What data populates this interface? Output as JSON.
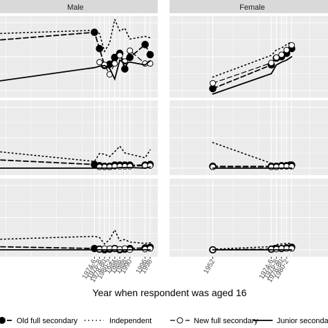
{
  "chart_data": {
    "type": "line",
    "xlabel": "Year when respondent was aged 16",
    "ylabel": "",
    "facet_titles": [
      "Male",
      "Female"
    ],
    "rows": 3,
    "x_tick_labels": {
      "Male": [
        "1974-6",
        "1976-8",
        "1978-80",
        "1980-2",
        "1984",
        "1986",
        "1988",
        "1990",
        "1996",
        "1998"
      ],
      "Female": [
        "1952",
        "1974-6",
        "1976-8",
        "1978-80",
        "1980-2"
      ]
    },
    "x_domain": [
      1935,
      2000
    ],
    "y_domain": [
      0,
      1
    ],
    "series": [
      {
        "name": "Old full secondary",
        "marker": "filled-circle",
        "line": "dashed"
      },
      {
        "name": "Independent",
        "marker": "none",
        "line": "dotted"
      },
      {
        "name": "New full secondary",
        "marker": "open-circle",
        "line": "dashed"
      },
      {
        "name": "Junior secondary",
        "marker": "none",
        "line": "solid"
      }
    ],
    "panels": [
      {
        "row": 0,
        "facet": "Male",
        "lines": {
          "Old full secondary": [
            [
              1935,
              0.74
            ],
            [
              1975,
              0.86
            ],
            [
              1977,
              0.62
            ],
            [
              1979,
              0.37
            ],
            [
              1981,
              0.39
            ],
            [
              1983,
              0.49
            ],
            [
              1985,
              0.55
            ],
            [
              1987,
              0.32
            ],
            [
              1989,
              0.49
            ],
            [
              1995,
              0.68
            ],
            [
              1997,
              0.53
            ]
          ],
          "Independent": [
            [
              1935,
              0.84
            ],
            [
              1975,
              0.89
            ],
            [
              1977,
              0.84
            ],
            [
              1979,
              0.58
            ],
            [
              1981,
              0.7
            ],
            [
              1983,
              1.05
            ],
            [
              1985,
              0.88
            ],
            [
              1987,
              0.92
            ],
            [
              1989,
              0.76
            ],
            [
              1995,
              0.8
            ],
            [
              1997,
              0.78
            ]
          ],
          "New full secondary": [
            [
              1977,
              0.42
            ],
            [
              1979,
              0.38
            ],
            [
              1981,
              0.24
            ],
            [
              1983,
              0.4
            ],
            [
              1985,
              0.52
            ],
            [
              1987,
              0.43
            ],
            [
              1989,
              0.59
            ],
            [
              1995,
              0.4
            ],
            [
              1997,
              0.4
            ]
          ],
          "Junior secondary": [
            [
              1935,
              0.13
            ],
            [
              1975,
              0.34
            ],
            [
              1977,
              0.36
            ],
            [
              1979,
              0.37
            ],
            [
              1981,
              0.33
            ],
            [
              1983,
              0.17
            ],
            [
              1985,
              0.45
            ],
            [
              1987,
              0.4
            ],
            [
              1989,
              0.42
            ],
            [
              1995,
              0.38
            ],
            [
              1997,
              0.44
            ]
          ]
        }
      },
      {
        "row": 0,
        "facet": "Female",
        "lines": {
          "Old full secondary": [
            [
              1952,
              0.03
            ],
            [
              1975,
              0.38
            ],
            [
              1977,
              0.48
            ],
            [
              1979,
              0.5
            ],
            [
              1981,
              0.55
            ],
            [
              1983,
              0.62
            ]
          ],
          "Independent": [
            [
              1952,
              0.2
            ],
            [
              1975,
              0.52
            ],
            [
              1977,
              0.6
            ],
            [
              1979,
              0.63
            ],
            [
              1981,
              0.68
            ],
            [
              1983,
              0.72
            ]
          ],
          "New full secondary": [
            [
              1952,
              0.11
            ],
            [
              1975,
              0.41
            ],
            [
              1977,
              0.49
            ],
            [
              1979,
              0.53
            ],
            [
              1981,
              0.6
            ],
            [
              1983,
              0.67
            ]
          ],
          "Junior secondary": [
            [
              1952,
              -0.05
            ],
            [
              1975,
              0.25
            ],
            [
              1977,
              0.38
            ],
            [
              1979,
              0.42
            ],
            [
              1981,
              0.45
            ],
            [
              1983,
              0.5
            ]
          ]
        }
      },
      {
        "row": 1,
        "facet": "Male",
        "lines": {
          "Old full secondary": [
            [
              1935,
              0.14
            ],
            [
              1975,
              0.06
            ],
            [
              1977,
              0.04
            ],
            [
              1979,
              0.03
            ],
            [
              1981,
              0.03
            ],
            [
              1983,
              0.05
            ],
            [
              1985,
              0.05
            ],
            [
              1987,
              0.05
            ],
            [
              1989,
              0.05
            ],
            [
              1995,
              0.05
            ],
            [
              1997,
              0.06
            ]
          ],
          "Independent": [
            [
              1935,
              0.28
            ],
            [
              1975,
              0.11
            ],
            [
              1977,
              0.24
            ],
            [
              1979,
              0.23
            ],
            [
              1981,
              0.19
            ],
            [
              1983,
              0.27
            ],
            [
              1985,
              0.36
            ],
            [
              1987,
              0.25
            ],
            [
              1989,
              0.23
            ],
            [
              1995,
              0.17
            ],
            [
              1997,
              0.3
            ]
          ],
          "New full secondary": [
            [
              1977,
              0.02
            ],
            [
              1979,
              0.02
            ],
            [
              1981,
              0.02
            ],
            [
              1983,
              0.03
            ],
            [
              1985,
              0.03
            ],
            [
              1987,
              0.03
            ],
            [
              1989,
              0.03
            ],
            [
              1995,
              0.04
            ],
            [
              1997,
              0.04
            ]
          ],
          "Junior secondary": [
            [
              1935,
              0.0
            ],
            [
              1975,
              0.0
            ],
            [
              1977,
              0.0
            ],
            [
              1979,
              0.0
            ],
            [
              1981,
              0.0
            ],
            [
              1983,
              0.0
            ],
            [
              1985,
              0.01
            ],
            [
              1987,
              0.01
            ],
            [
              1989,
              0.01
            ],
            [
              1995,
              0.0
            ],
            [
              1997,
              0.02
            ]
          ]
        }
      },
      {
        "row": 1,
        "facet": "Female",
        "lines": {
          "Old full secondary": [
            [
              1952,
              0.03
            ],
            [
              1975,
              0.03
            ],
            [
              1977,
              0.03
            ],
            [
              1979,
              0.04
            ],
            [
              1981,
              0.04
            ],
            [
              1983,
              0.05
            ]
          ],
          "Independent": [
            [
              1952,
              0.42
            ],
            [
              1975,
              0.08
            ],
            [
              1977,
              0.06
            ],
            [
              1979,
              0.08
            ],
            [
              1981,
              0.09
            ],
            [
              1983,
              0.11
            ]
          ],
          "New full secondary": [
            [
              1952,
              0.02
            ],
            [
              1975,
              0.02
            ],
            [
              1977,
              0.02
            ],
            [
              1979,
              0.03
            ],
            [
              1981,
              0.03
            ],
            [
              1983,
              0.03
            ]
          ],
          "Junior secondary": [
            [
              1952,
              0.0
            ],
            [
              1975,
              0.0
            ],
            [
              1977,
              0.0
            ],
            [
              1979,
              0.0
            ],
            [
              1981,
              0.0
            ],
            [
              1983,
              0.0
            ]
          ]
        }
      },
      {
        "row": 2,
        "facet": "Male",
        "lines": {
          "Old full secondary": [
            [
              1935,
              0.05
            ],
            [
              1975,
              0.02
            ],
            [
              1977,
              0.01
            ],
            [
              1979,
              0.0
            ],
            [
              1981,
              0.01
            ],
            [
              1983,
              0.02
            ],
            [
              1985,
              0.0
            ],
            [
              1987,
              0.01
            ],
            [
              1989,
              0.02
            ],
            [
              1995,
              0.03
            ],
            [
              1997,
              0.04
            ]
          ],
          "Independent": [
            [
              1935,
              0.16
            ],
            [
              1975,
              0.21
            ],
            [
              1977,
              0.19
            ],
            [
              1979,
              0.09
            ],
            [
              1981,
              0.16
            ],
            [
              1983,
              0.31
            ],
            [
              1985,
              0.14
            ],
            [
              1987,
              0.16
            ],
            [
              1989,
              0.12
            ],
            [
              1995,
              0.1
            ],
            [
              1997,
              0.11
            ]
          ],
          "New full secondary": [
            [
              1977,
              0.01
            ],
            [
              1979,
              0.02
            ],
            [
              1981,
              0.02
            ],
            [
              1983,
              0.02
            ],
            [
              1985,
              0.01
            ],
            [
              1987,
              0.02
            ],
            [
              1989,
              0.0
            ],
            [
              1995,
              0.01
            ],
            [
              1997,
              0.02
            ]
          ],
          "Junior secondary": [
            [
              1935,
              0.0
            ],
            [
              1975,
              0.0
            ],
            [
              1977,
              0.0
            ],
            [
              1979,
              0.0
            ],
            [
              1981,
              0.0
            ],
            [
              1983,
              0.0
            ],
            [
              1985,
              0.0
            ],
            [
              1987,
              0.0
            ],
            [
              1989,
              0.0
            ],
            [
              1995,
              0.0
            ],
            [
              1997,
              0.0
            ]
          ]
        }
      },
      {
        "row": 2,
        "facet": "Female",
        "lines": {
          "Old full secondary": [
            [
              1952,
              0.0
            ],
            [
              1975,
              0.01
            ],
            [
              1977,
              0.02
            ],
            [
              1979,
              0.02
            ],
            [
              1981,
              0.03
            ],
            [
              1983,
              0.04
            ]
          ],
          "Independent": [
            [
              1952,
              0.01
            ],
            [
              1975,
              0.05
            ],
            [
              1977,
              0.08
            ],
            [
              1979,
              0.09
            ],
            [
              1981,
              0.1
            ],
            [
              1983,
              0.1
            ]
          ],
          "New full secondary": [
            [
              1952,
              0.0
            ],
            [
              1975,
              0.01
            ],
            [
              1977,
              0.01
            ],
            [
              1979,
              0.02
            ],
            [
              1981,
              0.02
            ],
            [
              1983,
              0.02
            ]
          ],
          "Junior secondary": [
            [
              1952,
              0.0
            ],
            [
              1975,
              0.0
            ],
            [
              1977,
              0.0
            ],
            [
              1979,
              0.0
            ],
            [
              1981,
              0.0
            ],
            [
              1983,
              0.0
            ]
          ]
        }
      }
    ],
    "legend_position": "bottom",
    "grid": true,
    "colors": {
      "panel_bg": "#ebebeb",
      "strip_bg": "#d9d9d9",
      "grid": "#ffffff",
      "ink": "#000000"
    }
  }
}
